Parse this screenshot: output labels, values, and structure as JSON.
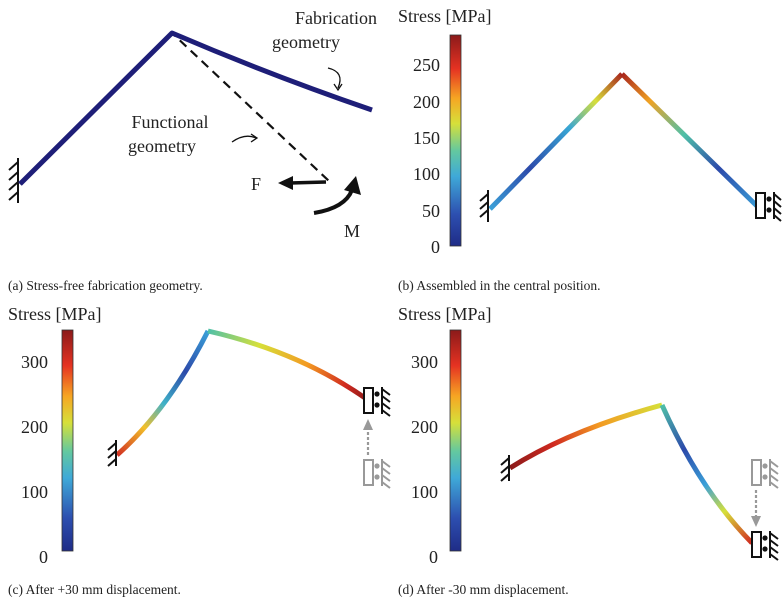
{
  "figure": {
    "a": {
      "caption": "(a) Stress-free fabrication geometry.",
      "label_fabrication": [
        "Fabrication",
        "geometry"
      ],
      "label_functional": [
        "Functional",
        "geometry"
      ],
      "label_force": "F",
      "label_moment": "M"
    },
    "b": {
      "caption": "(b) Assembled in the central position.",
      "colorbar_title": "Stress [MPa]",
      "ticks": [
        "250",
        "200",
        "150",
        "100",
        "50",
        "0"
      ]
    },
    "c": {
      "caption": "(c) After +30 mm displacement.",
      "colorbar_title": "Stress [MPa]",
      "ticks": [
        "300",
        "200",
        "100",
        "0"
      ]
    },
    "d": {
      "caption": "(d) After -30 mm displacement.",
      "colorbar_title": "Stress [MPa]",
      "ticks": [
        "300",
        "200",
        "100",
        "0"
      ]
    }
  },
  "colors": {
    "beam_fabrication": "#1e1e78",
    "jet_low": "#2b2f8f",
    "jet_high": "#8b1a1a",
    "support_grey": "#999999"
  }
}
